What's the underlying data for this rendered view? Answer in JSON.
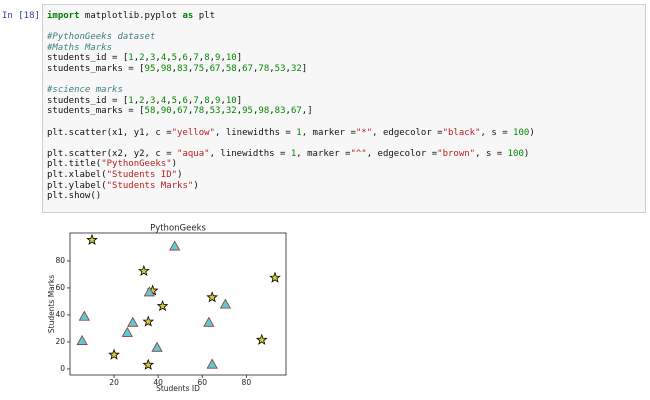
{
  "prompt": "In [18]:",
  "code": {
    "blocks": [
      [
        "import matplotlib.pyplot as plt"
      ],
      [
        "#PythonGeeks dataset",
        "#Maths Marks",
        "students_id = [1,2,3,4,5,6,7,8,9,10]",
        "students_marks = [95,98,83,75,67,58,67,78,53,32]"
      ],
      [
        "#science marks",
        "students_id = [1,2,3,4,5,6,7,8,9,10]",
        "students_marks = [58,90,67,78,53,32,95,98,83,67,]"
      ],
      [
        "plt.scatter(x1, y1, c =\"yellow\", linewidths = 1, marker =\"*\", edgecolor =\"black\", s = 100)"
      ],
      [
        "plt.scatter(x2, y2, c = \"aqua\", linewidths = 1, marker =\"^\", edgecolor =\"brown\", s = 100)",
        "plt.title(\"PythonGeeks\")",
        "plt.xlabel(\"Students ID\")",
        "plt.ylabel(\"Students Marks\")",
        "plt.show()"
      ]
    ]
  },
  "chart_data": {
    "type": "scatter",
    "title": "PythonGeeks",
    "x_label": "Students ID",
    "y_label": "Students Marks",
    "xlim": [
      0,
      98
    ],
    "ylim": [
      -4.5,
      100.7
    ],
    "xticks": [
      20,
      40,
      60,
      80
    ],
    "yticks": [
      0,
      20,
      40,
      60,
      80
    ],
    "series": [
      {
        "marker": "star",
        "color": "#d8cc3a",
        "edgecolor": "#000000",
        "x": [
          10,
          33.5,
          93,
          37.5,
          64.5,
          42,
          35.5,
          87,
          20,
          35.5
        ],
        "values": [
          95.5,
          72.5,
          67.5,
          58,
          53,
          46.5,
          35,
          21.5,
          10.5,
          3
        ]
      },
      {
        "marker": "triangle",
        "color": "#5fc8d0",
        "edgecolor": "#8b3a3a",
        "x": [
          47.5,
          36,
          70.5,
          6.5,
          28.5,
          63,
          26,
          5.5,
          39.5,
          64.5
        ],
        "values": [
          90.5,
          56.5,
          47.5,
          38.5,
          34,
          34,
          26.5,
          20.5,
          15.5,
          3
        ]
      }
    ]
  }
}
